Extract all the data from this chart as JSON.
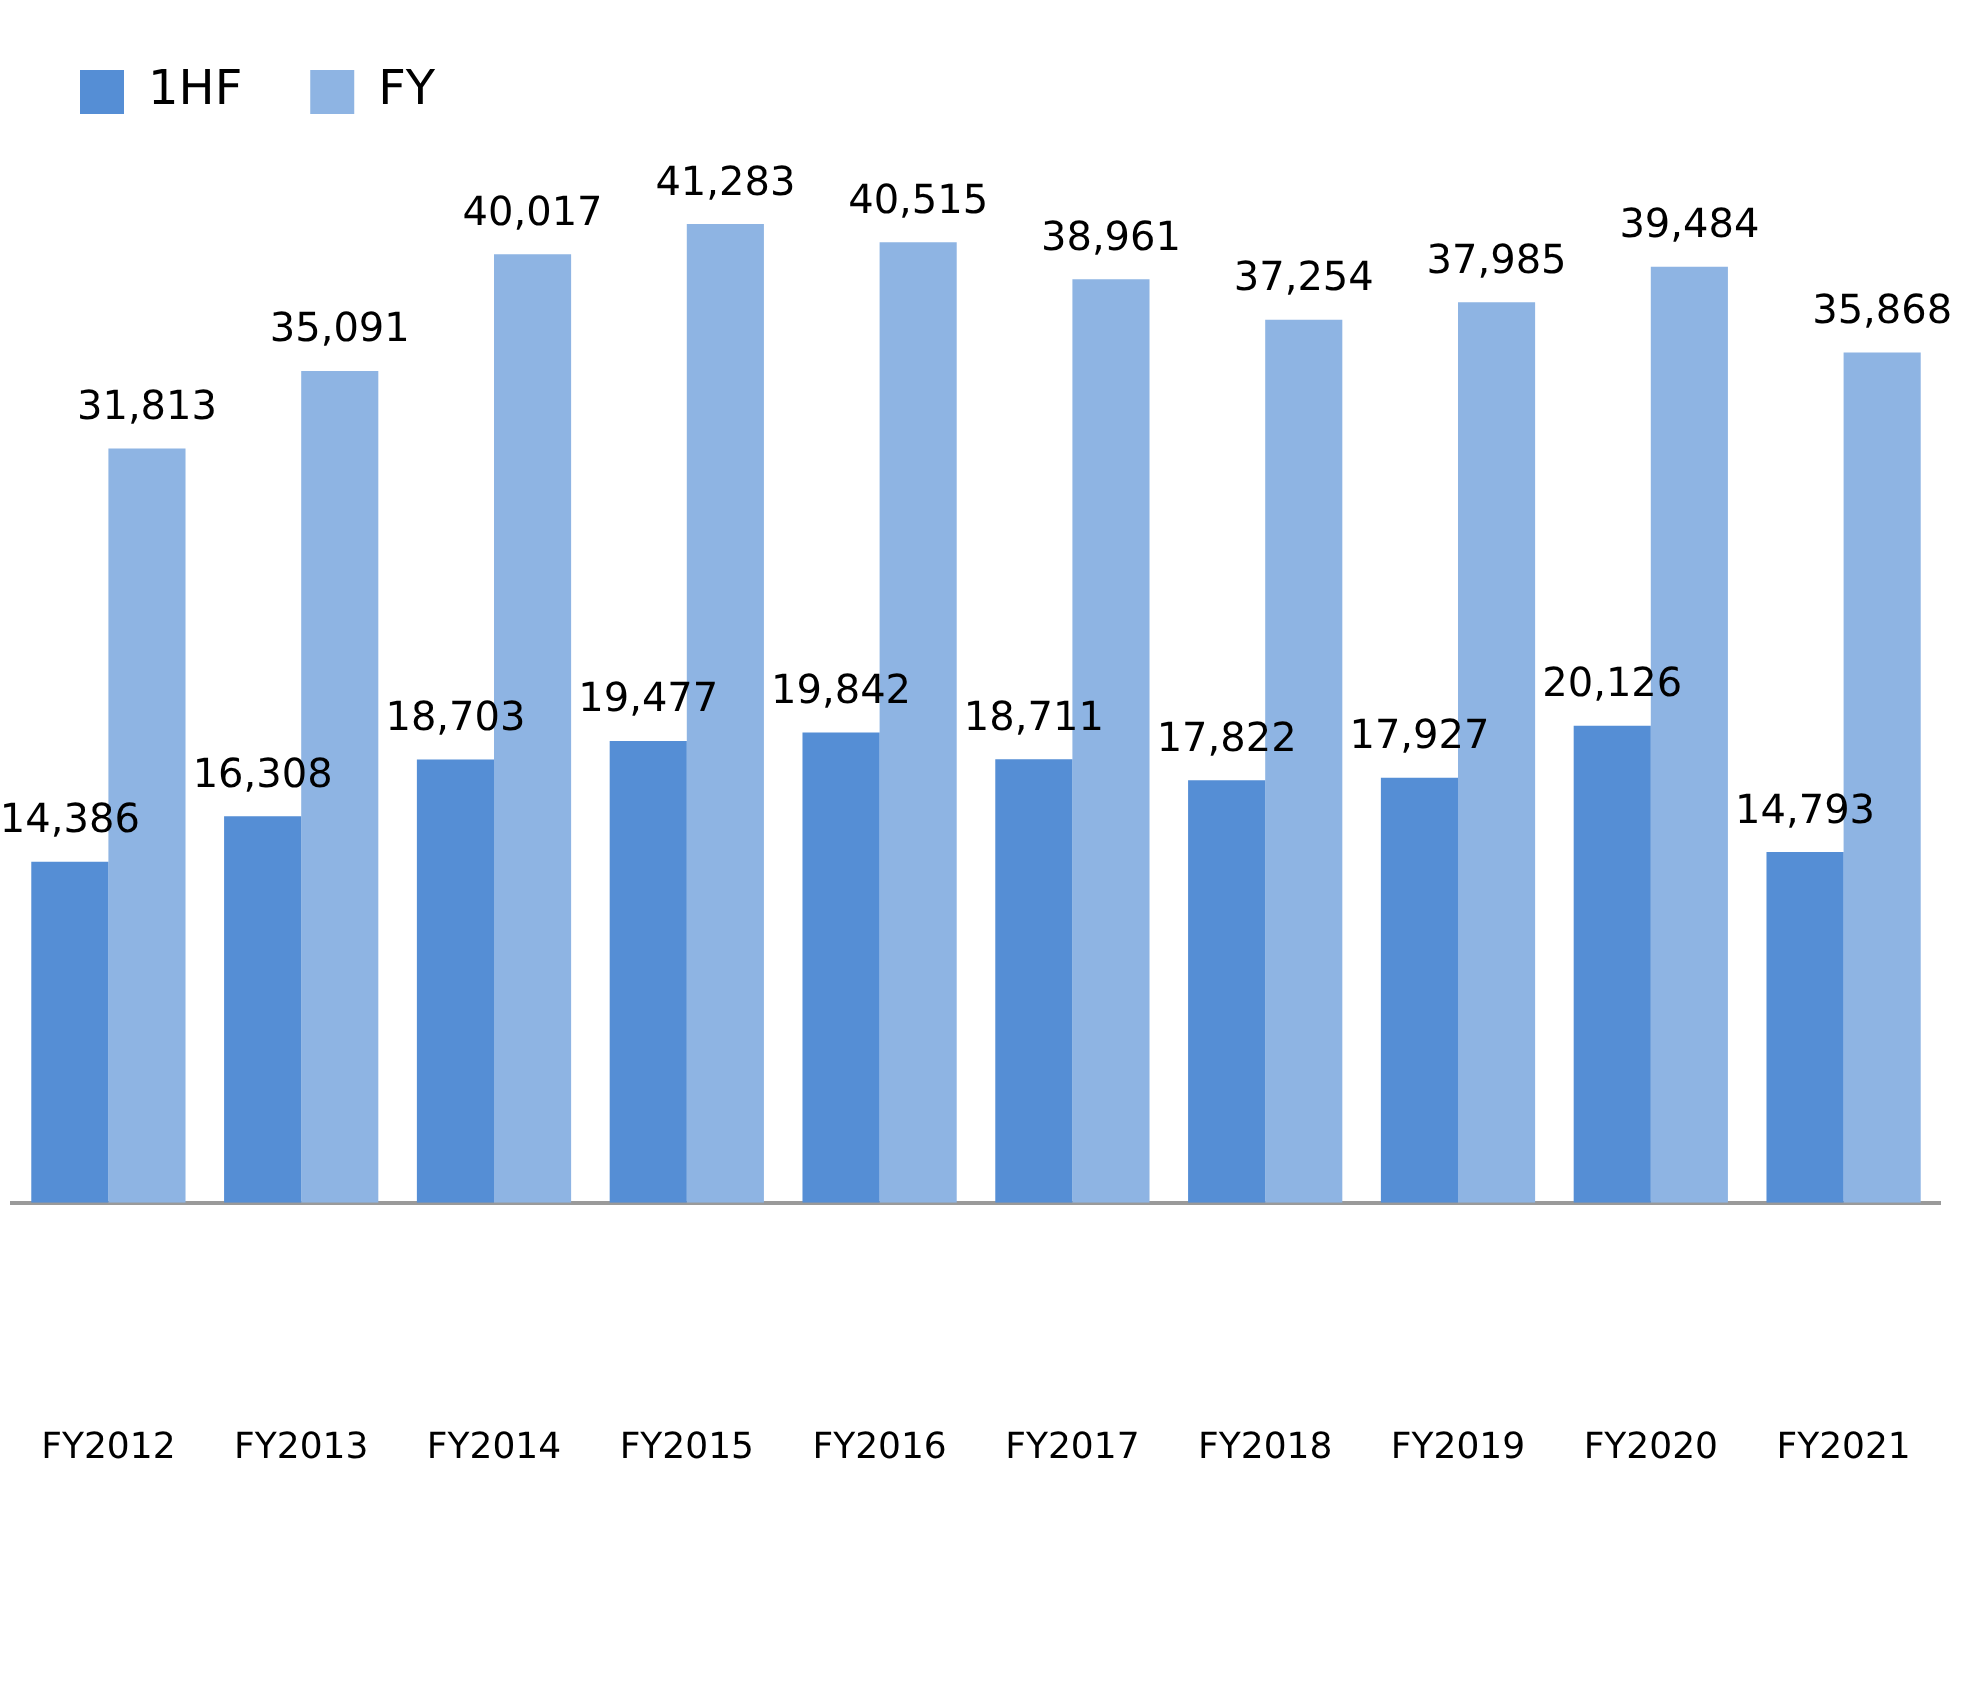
{
  "chart_data": {
    "type": "bar",
    "categories": [
      "FY2012",
      "FY2013",
      "FY2014",
      "FY2015",
      "FY2016",
      "FY2017",
      "FY2018",
      "FY2019",
      "FY2020",
      "FY2021"
    ],
    "series": [
      {
        "name": "1HF",
        "color": "#558ed5",
        "values": [
          14386,
          16308,
          18703,
          19477,
          19842,
          18711,
          17822,
          17927,
          20126,
          14793
        ],
        "value_labels": [
          "14,386",
          "16,308",
          "18,703",
          "19,477",
          "19,842",
          "18,711",
          "17,822",
          "17,927",
          "20,126",
          "14,793"
        ]
      },
      {
        "name": "FY",
        "color": "#8eb4e3",
        "values": [
          31813,
          35091,
          40017,
          41283,
          40515,
          38961,
          37254,
          37985,
          39484,
          35868
        ],
        "value_labels": [
          "31,813",
          "35,091",
          "40,017",
          "41,283",
          "40,515",
          "38,961",
          "37,254",
          "37,985",
          "39,484",
          "35,868"
        ]
      }
    ],
    "legend": "top left",
    "grid": false
  }
}
